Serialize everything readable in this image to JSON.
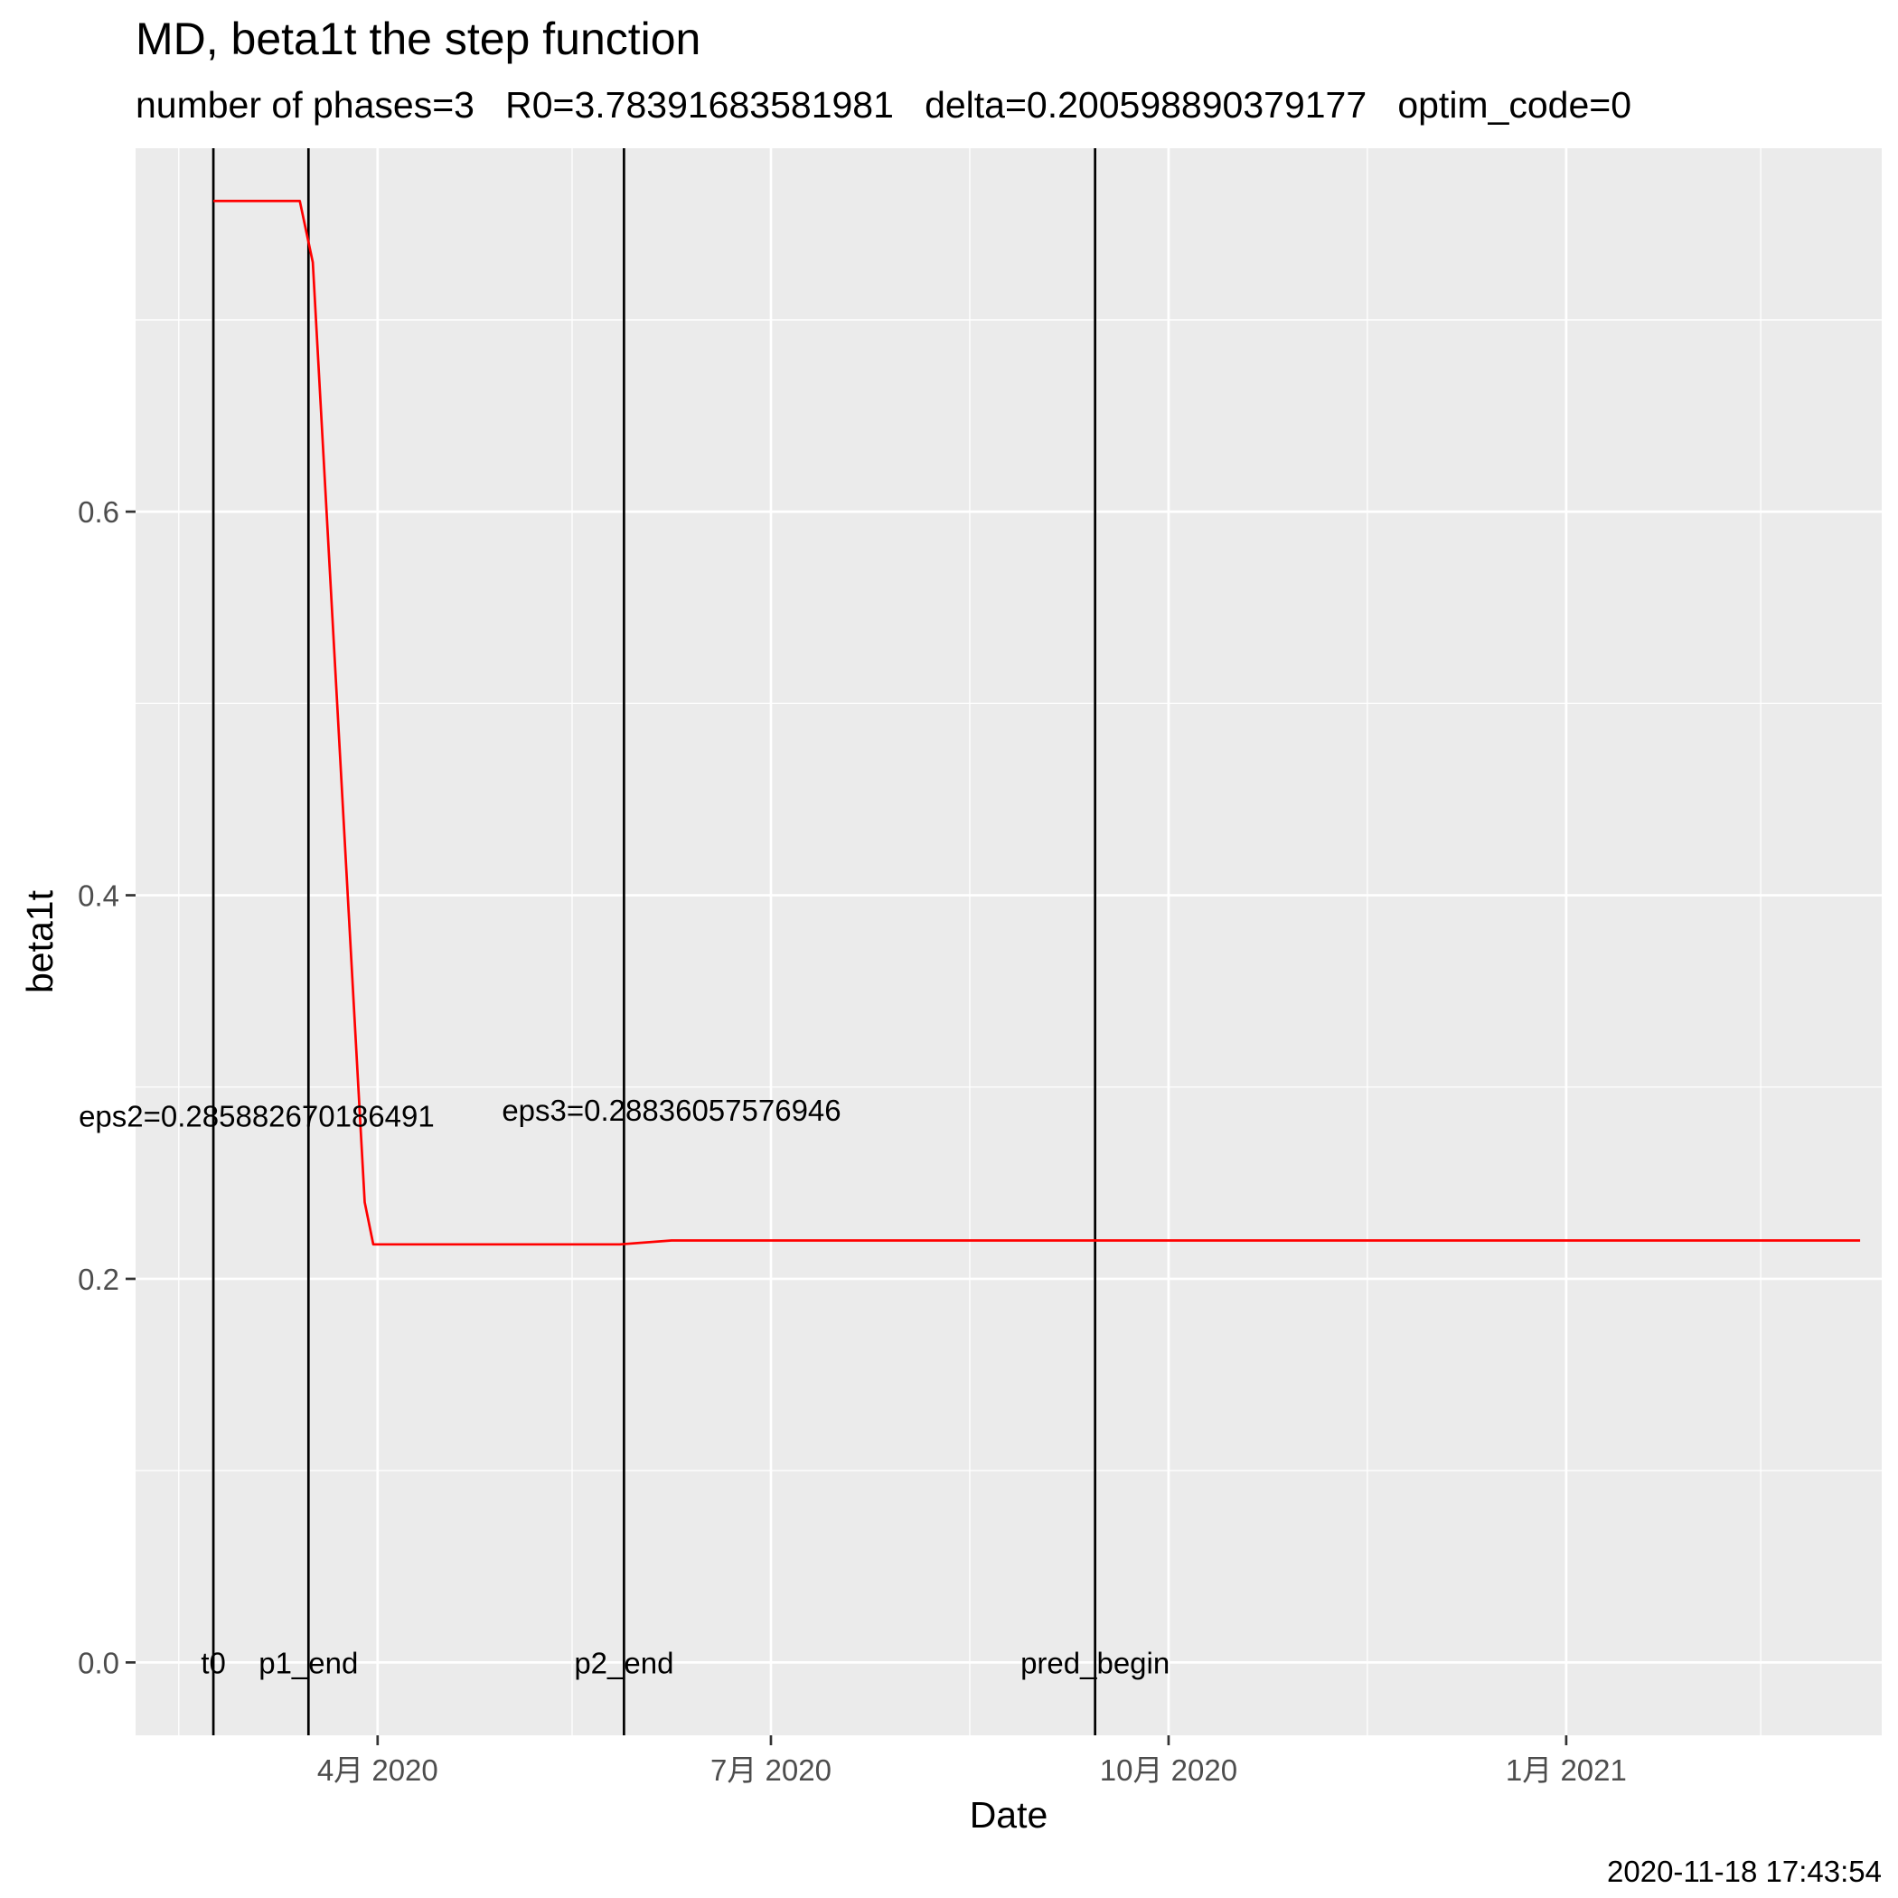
{
  "chart_data": {
    "type": "line",
    "title": "MD, beta1t the step function",
    "subtitle": "number of phases=3   R0=3.78391683581981   delta=0.200598890379177   optim_code=0",
    "xlabel": "Date",
    "ylabel": "beta1t",
    "caption": "2020-11-18 17:43:54",
    "x_axis_type": "date",
    "xlim": [
      "2020-02-05",
      "2021-03-15"
    ],
    "ylim": [
      -0.038,
      0.7895
    ],
    "x_ticks": [
      {
        "date": "2020-04-01",
        "label": "4月 2020"
      },
      {
        "date": "2020-07-01",
        "label": "7月 2020"
      },
      {
        "date": "2020-10-01",
        "label": "10月 2020"
      },
      {
        "date": "2021-01-01",
        "label": "1月 2021"
      }
    ],
    "x_minor_ticks": [
      "2020-02-15",
      "2020-05-16",
      "2020-08-16",
      "2020-11-16",
      "2021-02-15"
    ],
    "y_ticks": [
      {
        "value": 0.0,
        "label": "0.0"
      },
      {
        "value": 0.2,
        "label": "0.2"
      },
      {
        "value": 0.4,
        "label": "0.4"
      },
      {
        "value": 0.6,
        "label": "0.6"
      }
    ],
    "y_minor_ticks": [
      0.1,
      0.3,
      0.5,
      0.7
    ],
    "series": [
      {
        "color": "#ff0000",
        "points": [
          {
            "x": "2020-02-23",
            "y": 0.762
          },
          {
            "x": "2020-03-14",
            "y": 0.762
          },
          {
            "x": "2020-03-17",
            "y": 0.73
          },
          {
            "x": "2020-03-29",
            "y": 0.24
          },
          {
            "x": "2020-03-31",
            "y": 0.218
          },
          {
            "x": "2020-05-27",
            "y": 0.218
          },
          {
            "x": "2020-06-08",
            "y": 0.22
          },
          {
            "x": "2021-03-10",
            "y": 0.22
          }
        ]
      }
    ],
    "vlines": [
      {
        "date": "2020-02-23",
        "label": "t0"
      },
      {
        "date": "2020-03-16",
        "label": "p1_end"
      },
      {
        "date": "2020-05-28",
        "label": "p2_end"
      },
      {
        "date": "2020-09-14",
        "label": "pred_begin"
      }
    ],
    "annotations": [
      {
        "x": "2020-03-04",
        "y": 0.285,
        "text": "eps2=0.285882670186491"
      },
      {
        "x": "2020-06-08",
        "y": 0.288,
        "text": "eps3=0.28836057576946"
      }
    ],
    "grid": true,
    "legend": "none",
    "colors": {
      "panel": "#ebebeb",
      "grid": "#ffffff",
      "line": "#ff0000",
      "vline": "#000000"
    }
  }
}
